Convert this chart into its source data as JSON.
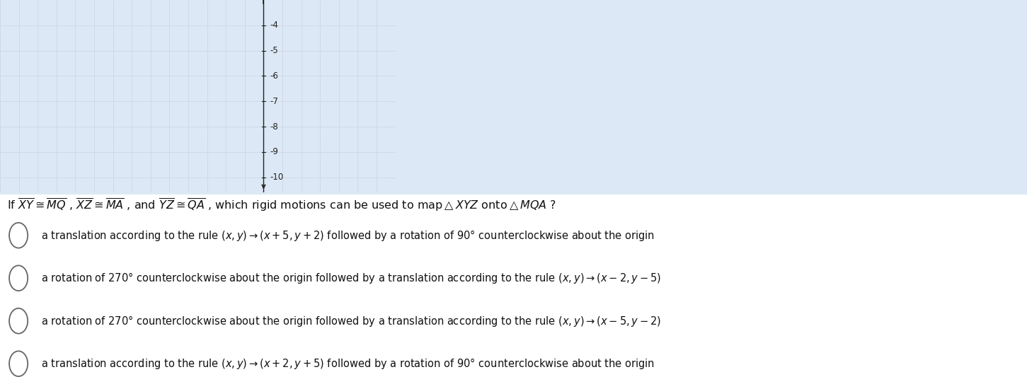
{
  "background_color": "#dce8f5",
  "grid_bg": "#f0f4fa",
  "grid_line_color": "#c8d4e0",
  "axis_color": "#222222",
  "tick_vals": [
    -4,
    -5,
    -6,
    -7,
    -8,
    -9,
    -10
  ],
  "question_text": "If $\\overline{XY} \\cong \\overline{MQ}$ , $\\overline{XZ} \\cong \\overline{MA}$ , and $\\overline{YZ} \\cong \\overline{QA}$ , which rigid motions can be used to map$\\triangle XYZ$ onto$\\triangle MQA$ ?",
  "options": [
    "a translation according to the rule $(x, y) \\rightarrow (x + 5, y + 2)$ followed by a rotation of 90° counterclockwise about the origin",
    "a rotation of 270° counterclockwise about the origin followed by a translation according to the rule $(x, y) \\rightarrow (x - 2, y - 5)$",
    "a rotation of 270° counterclockwise about the origin followed by a translation according to the rule $(x, y) \\rightarrow (x - 5, y - 2)$",
    "a translation according to the rule $(x, y) \\rightarrow (x + 2, y + 5)$ followed by a rotation of 90° counterclockwise about the origin"
  ],
  "text_color": "#111111",
  "circle_color": "#666666",
  "white": "#ffffff",
  "figsize": [
    14.51,
    5.5
  ],
  "dpi": 100,
  "grid_xlim": [
    -14,
    7
  ],
  "grid_ylim": [
    -10.6,
    -3.0
  ],
  "x_axis_pos": 0,
  "n_xcols": 21,
  "n_yrows": 8
}
